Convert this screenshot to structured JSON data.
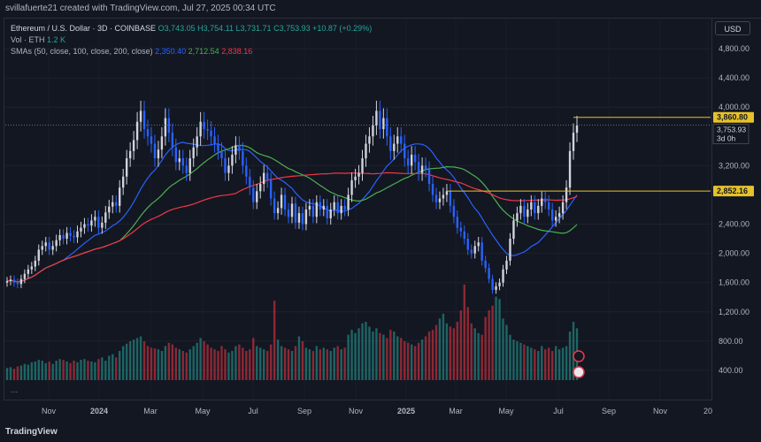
{
  "header": {
    "attribution": "svillafuerte21 created with TradingView.com, Jul 27, 2025 00:34 UTC"
  },
  "legend": {
    "symbol": "Ethereum / U.S. Dollar · 3D · COINBASE",
    "open": "O3,743.05",
    "high": "H3,754.11",
    "low": "L3,731.71",
    "close": "C3,753.93",
    "change": "+10.87 (+0.29%)",
    "vol_label": "Vol · ETH",
    "vol_value": "1.2 K",
    "sma_label": "SMAs (50, close, 100, close, 200, close)",
    "sma50": "2,350.40",
    "sma100": "2,712.54",
    "sma200": "2,838.16"
  },
  "currency_button": "USD",
  "brand": "TradingView",
  "more": "...",
  "colors": {
    "up": "#26a69a",
    "down": "#f23645",
    "sma50": "#2962ff",
    "sma100": "#4caf50",
    "sma200": "#f23645",
    "level": "#e6c229"
  },
  "chart_data": {
    "type": "candlestick",
    "x_tick_labels": [
      "Nov",
      "2024",
      "Mar",
      "May",
      "Jul",
      "Sep",
      "Nov",
      "2025",
      "Mar",
      "May",
      "Jul",
      "Sep",
      "Nov",
      "20"
    ],
    "y_tick_labels": [
      "4,800.00",
      "4,400.00",
      "4,000.00",
      "3,200.00",
      "2,400.00",
      "2,000.00",
      "1,600.00",
      "1,200.00",
      "800.00",
      "400.00"
    ],
    "y_ticks": [
      4800,
      4400,
      4000,
      3200,
      2400,
      2000,
      1600,
      1200,
      800,
      400
    ],
    "ylim": [
      0,
      5200
    ],
    "levels": [
      {
        "value": 3860.8,
        "label": "3,860.80"
      },
      {
        "value": 2852.16,
        "label": "2,852.16"
      }
    ],
    "last_price": {
      "value": 3753.93,
      "label": "3,753.93",
      "countdown": "3d 0h"
    },
    "series_note": "Approximate closes per 3-day candle read from the chart",
    "closes": [
      1620,
      1640,
      1600,
      1580,
      1650,
      1720,
      1780,
      1820,
      1900,
      2050,
      2100,
      2150,
      2050,
      2100,
      2180,
      2250,
      2200,
      2280,
      2240,
      2220,
      2300,
      2350,
      2400,
      2380,
      2450,
      2500,
      2350,
      2420,
      2560,
      2640,
      2700,
      2650,
      2900,
      3050,
      3300,
      3400,
      3550,
      3800,
      3950,
      3700,
      3600,
      3500,
      3300,
      3420,
      3600,
      3850,
      3650,
      3450,
      3250,
      3300,
      3200,
      3100,
      3300,
      3450,
      3600,
      3800,
      3700,
      3680,
      3600,
      3500,
      3400,
      3300,
      3100,
      3200,
      3350,
      3480,
      3400,
      3200,
      3050,
      2900,
      2700,
      2850,
      2950,
      3100,
      3000,
      2750,
      2550,
      2620,
      2800,
      2600,
      2500,
      2680,
      2420,
      2550,
      2400,
      2600,
      2650,
      2500,
      2700,
      2600,
      2650,
      2480,
      2600,
      2700,
      2550,
      2650,
      2600,
      2800,
      3000,
      3050,
      3100,
      3300,
      3500,
      3600,
      3750,
      3950,
      3700,
      3850,
      3600,
      3400,
      3500,
      3600,
      3500,
      3300,
      3200,
      3350,
      3250,
      3100,
      3200,
      3150,
      2950,
      2800,
      2700,
      2750,
      2800,
      2850,
      2650,
      2500,
      2350,
      2300,
      2200,
      2050,
      2000,
      2100,
      2150,
      1900,
      1800,
      1650,
      1500,
      1550,
      1600,
      1780,
      1900,
      2200,
      2450,
      2550,
      2650,
      2500,
      2600,
      2700,
      2550,
      2650,
      2750,
      2700,
      2600,
      2450,
      2500,
      2550,
      2700,
      2900,
      3400,
      3650,
      3750
    ],
    "volumes": [
      150,
      160,
      140,
      170,
      180,
      200,
      190,
      220,
      230,
      250,
      240,
      210,
      230,
      200,
      240,
      260,
      250,
      230,
      210,
      240,
      220,
      250,
      260,
      240,
      230,
      220,
      260,
      280,
      240,
      300,
      320,
      280,
      360,
      420,
      450,
      480,
      500,
      520,
      540,
      480,
      420,
      400,
      390,
      380,
      360,
      420,
      460,
      440,
      400,
      380,
      360,
      340,
      380,
      420,
      460,
      520,
      480,
      440,
      400,
      380,
      360,
      420,
      380,
      340,
      360,
      420,
      440,
      400,
      360,
      380,
      520,
      420,
      400,
      380,
      360,
      440,
      980,
      500,
      420,
      400,
      380,
      360,
      420,
      540,
      480,
      400,
      380,
      360,
      420,
      380,
      400,
      380,
      360,
      400,
      420,
      380,
      400,
      560,
      620,
      580,
      640,
      700,
      720,
      660,
      600,
      640,
      580,
      560,
      520,
      620,
      600,
      540,
      520,
      480,
      460,
      440,
      420,
      460,
      500,
      540,
      600,
      620,
      680,
      760,
      820,
      700,
      660,
      640,
      720,
      860,
      1180,
      900,
      700,
      640,
      580,
      560,
      780,
      860,
      920,
      1030,
      1000,
      760,
      680,
      560,
      500,
      480,
      460,
      440,
      420,
      400,
      380,
      360,
      420,
      380,
      400,
      360,
      420,
      380,
      400,
      420,
      600,
      720,
      640
    ]
  }
}
